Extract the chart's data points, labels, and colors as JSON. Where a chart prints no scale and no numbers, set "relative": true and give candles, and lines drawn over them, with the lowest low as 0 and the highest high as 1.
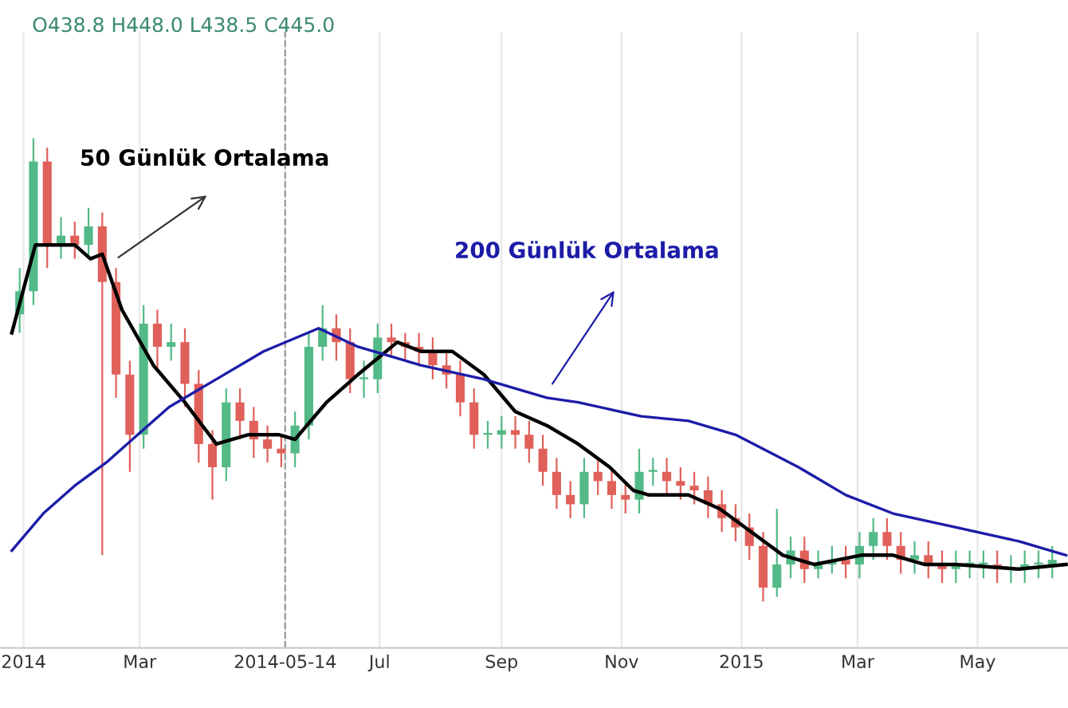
{
  "chart_data": {
    "type": "candlestick",
    "relative": true,
    "grid": "x",
    "legend": false,
    "annotations": [
      "O438.8 H448.0 L438.5 C445.0"
    ],
    "xlim": [
      "2013-12-20",
      "2015-06-16"
    ],
    "xticks": [
      {
        "value": "2014-01-01",
        "label": "2014"
      },
      {
        "value": "2014-03-01",
        "label": "Mar"
      },
      {
        "value": "2014-05-14",
        "label": "2014-05-14"
      },
      {
        "value": "2014-07-01",
        "label": "Jul"
      },
      {
        "value": "2014-09-01",
        "label": "Sep"
      },
      {
        "value": "2014-11-01",
        "label": "Nov"
      },
      {
        "value": "2015-01-01",
        "label": "2015"
      },
      {
        "value": "2015-03-01",
        "label": "Mar"
      },
      {
        "value": "2015-05-01",
        "label": "May"
      }
    ],
    "ref_lines": [
      {
        "axis": "x",
        "value": "2014-05-14",
        "label": null,
        "color": "#999999",
        "line_style": "dashed"
      }
    ],
    "x": [
      "2013-12-30",
      "2014-01-06",
      "2014-01-13",
      "2014-01-20",
      "2014-01-27",
      "2014-02-03",
      "2014-02-10",
      "2014-02-17",
      "2014-02-24",
      "2014-03-03",
      "2014-03-10",
      "2014-03-17",
      "2014-03-24",
      "2014-03-31",
      "2014-04-07",
      "2014-04-14",
      "2014-04-21",
      "2014-04-28",
      "2014-05-05",
      "2014-05-12",
      "2014-05-19",
      "2014-05-26",
      "2014-06-02",
      "2014-06-09",
      "2014-06-16",
      "2014-06-23",
      "2014-06-30",
      "2014-07-07",
      "2014-07-14",
      "2014-07-21",
      "2014-07-28",
      "2014-08-04",
      "2014-08-11",
      "2014-08-18",
      "2014-08-25",
      "2014-09-01",
      "2014-09-08",
      "2014-09-15",
      "2014-09-22",
      "2014-09-29",
      "2014-10-06",
      "2014-10-13",
      "2014-10-20",
      "2014-10-27",
      "2014-11-03",
      "2014-11-10",
      "2014-11-17",
      "2014-11-24",
      "2014-12-01",
      "2014-12-08",
      "2014-12-15",
      "2014-12-22",
      "2014-12-29",
      "2015-01-05",
      "2015-01-12",
      "2015-01-19",
      "2015-01-26",
      "2015-02-02",
      "2015-02-09",
      "2015-02-16",
      "2015-02-23",
      "2015-03-02",
      "2015-03-09",
      "2015-03-16",
      "2015-03-23",
      "2015-03-30",
      "2015-04-06",
      "2015-04-13",
      "2015-04-20",
      "2015-04-27",
      "2015-05-04",
      "2015-05-11",
      "2015-05-18",
      "2015-05-25",
      "2015-06-01",
      "2015-06-08"
    ],
    "ohlc": [
      [
        0.62,
        0.72,
        0.58,
        0.67
      ],
      [
        0.67,
        1.0,
        0.64,
        0.95
      ],
      [
        0.95,
        0.98,
        0.72,
        0.77
      ],
      [
        0.77,
        0.83,
        0.74,
        0.79
      ],
      [
        0.79,
        0.82,
        0.74,
        0.77
      ],
      [
        0.77,
        0.85,
        0.74,
        0.81
      ],
      [
        0.81,
        0.84,
        0.1,
        0.69
      ],
      [
        0.69,
        0.72,
        0.44,
        0.49
      ],
      [
        0.49,
        0.52,
        0.28,
        0.36
      ],
      [
        0.36,
        0.64,
        0.33,
        0.6
      ],
      [
        0.6,
        0.63,
        0.5,
        0.55
      ],
      [
        0.55,
        0.6,
        0.52,
        0.56
      ],
      [
        0.56,
        0.59,
        0.42,
        0.47
      ],
      [
        0.47,
        0.5,
        0.3,
        0.34
      ],
      [
        0.34,
        0.37,
        0.22,
        0.29
      ],
      [
        0.29,
        0.46,
        0.26,
        0.43
      ],
      [
        0.43,
        0.46,
        0.35,
        0.39
      ],
      [
        0.39,
        0.42,
        0.31,
        0.35
      ],
      [
        0.35,
        0.38,
        0.3,
        0.33
      ],
      [
        0.33,
        0.36,
        0.29,
        0.32
      ],
      [
        0.32,
        0.41,
        0.29,
        0.38
      ],
      [
        0.38,
        0.58,
        0.35,
        0.55
      ],
      [
        0.55,
        0.64,
        0.52,
        0.59
      ],
      [
        0.59,
        0.62,
        0.52,
        0.56
      ],
      [
        0.56,
        0.59,
        0.45,
        0.48
      ],
      [
        0.48,
        0.52,
        0.44,
        0.48
      ],
      [
        0.48,
        0.6,
        0.45,
        0.57
      ],
      [
        0.57,
        0.6,
        0.53,
        0.56
      ],
      [
        0.56,
        0.58,
        0.52,
        0.55
      ],
      [
        0.55,
        0.58,
        0.51,
        0.54
      ],
      [
        0.54,
        0.57,
        0.48,
        0.51
      ],
      [
        0.51,
        0.54,
        0.46,
        0.49
      ],
      [
        0.49,
        0.52,
        0.4,
        0.43
      ],
      [
        0.43,
        0.46,
        0.33,
        0.36
      ],
      [
        0.36,
        0.39,
        0.33,
        0.36
      ],
      [
        0.36,
        0.4,
        0.33,
        0.37
      ],
      [
        0.37,
        0.4,
        0.33,
        0.36
      ],
      [
        0.36,
        0.39,
        0.3,
        0.33
      ],
      [
        0.33,
        0.36,
        0.25,
        0.28
      ],
      [
        0.28,
        0.31,
        0.2,
        0.23
      ],
      [
        0.23,
        0.26,
        0.18,
        0.21
      ],
      [
        0.21,
        0.31,
        0.18,
        0.28
      ],
      [
        0.28,
        0.31,
        0.23,
        0.26
      ],
      [
        0.26,
        0.29,
        0.2,
        0.23
      ],
      [
        0.23,
        0.26,
        0.19,
        0.22
      ],
      [
        0.22,
        0.33,
        0.19,
        0.28
      ],
      [
        0.28,
        0.31,
        0.25,
        0.28
      ],
      [
        0.28,
        0.31,
        0.23,
        0.26
      ],
      [
        0.26,
        0.29,
        0.22,
        0.25
      ],
      [
        0.25,
        0.28,
        0.21,
        0.24
      ],
      [
        0.24,
        0.27,
        0.18,
        0.21
      ],
      [
        0.21,
        0.24,
        0.15,
        0.18
      ],
      [
        0.18,
        0.21,
        0.13,
        0.16
      ],
      [
        0.16,
        0.19,
        0.09,
        0.12
      ],
      [
        0.12,
        0.15,
        0.0,
        0.03
      ],
      [
        0.03,
        0.2,
        0.01,
        0.08
      ],
      [
        0.08,
        0.14,
        0.05,
        0.11
      ],
      [
        0.11,
        0.14,
        0.04,
        0.07
      ],
      [
        0.07,
        0.11,
        0.05,
        0.08
      ],
      [
        0.08,
        0.12,
        0.06,
        0.09
      ],
      [
        0.09,
        0.12,
        0.05,
        0.08
      ],
      [
        0.08,
        0.15,
        0.05,
        0.12
      ],
      [
        0.12,
        0.18,
        0.09,
        0.15
      ],
      [
        0.15,
        0.18,
        0.09,
        0.12
      ],
      [
        0.12,
        0.15,
        0.06,
        0.09
      ],
      [
        0.09,
        0.13,
        0.06,
        0.1
      ],
      [
        0.1,
        0.13,
        0.05,
        0.08
      ],
      [
        0.08,
        0.11,
        0.04,
        0.07
      ],
      [
        0.07,
        0.11,
        0.04,
        0.08
      ],
      [
        0.08,
        0.11,
        0.05,
        0.08
      ],
      [
        0.08,
        0.11,
        0.05,
        0.08
      ],
      [
        0.08,
        0.11,
        0.04,
        0.07
      ],
      [
        0.07,
        0.1,
        0.04,
        0.07
      ],
      [
        0.07,
        0.11,
        0.04,
        0.08
      ],
      [
        0.08,
        0.11,
        0.05,
        0.08
      ],
      [
        0.08,
        0.12,
        0.05,
        0.09
      ]
    ],
    "series": [
      {
        "name": "50 Günlük Ortalama",
        "type": "line",
        "color": "#000000",
        "x": [
          "2013-12-26",
          "2014-01-07",
          "2014-01-27",
          "2014-02-04",
          "2014-02-10",
          "2014-02-20",
          "2014-03-08",
          "2014-03-24",
          "2014-04-09",
          "2014-04-25",
          "2014-05-11",
          "2014-05-19",
          "2014-06-04",
          "2014-06-20",
          "2014-07-10",
          "2014-07-22",
          "2014-08-07",
          "2014-08-23",
          "2014-09-08",
          "2014-09-24",
          "2014-10-10",
          "2014-10-26",
          "2014-11-07",
          "2014-11-15",
          "2014-12-05",
          "2014-12-21",
          "2015-01-06",
          "2015-01-22",
          "2015-02-07",
          "2015-03-03",
          "2015-03-19",
          "2015-04-04",
          "2015-04-20",
          "2015-05-22",
          "2015-06-15"
        ],
        "values": [
          0.58,
          0.77,
          0.77,
          0.74,
          0.75,
          0.63,
          0.51,
          0.43,
          0.34,
          0.36,
          0.36,
          0.35,
          0.43,
          0.49,
          0.56,
          0.54,
          0.54,
          0.49,
          0.41,
          0.38,
          0.34,
          0.29,
          0.24,
          0.23,
          0.23,
          0.2,
          0.15,
          0.1,
          0.08,
          0.1,
          0.1,
          0.08,
          0.08,
          0.07,
          0.08
        ]
      },
      {
        "name": "200 Günlük Ortalama",
        "type": "line",
        "color": "#1c1ca8",
        "x": [
          "2013-12-26",
          "2014-01-11",
          "2014-01-27",
          "2014-02-12",
          "2014-02-28",
          "2014-03-16",
          "2014-04-09",
          "2014-05-03",
          "2014-05-31",
          "2014-06-20",
          "2014-07-22",
          "2014-08-23",
          "2014-09-24",
          "2014-10-10",
          "2014-11-11",
          "2014-12-05",
          "2014-12-29",
          "2015-01-30",
          "2015-02-23",
          "2015-03-19",
          "2015-04-20",
          "2015-05-22",
          "2015-06-15"
        ],
        "values": [
          0.11,
          0.19,
          0.25,
          0.3,
          0.36,
          0.42,
          0.48,
          0.54,
          0.59,
          0.55,
          0.51,
          0.48,
          0.44,
          0.43,
          0.4,
          0.39,
          0.36,
          0.29,
          0.23,
          0.19,
          0.16,
          0.13,
          0.1
        ]
      }
    ]
  }
}
